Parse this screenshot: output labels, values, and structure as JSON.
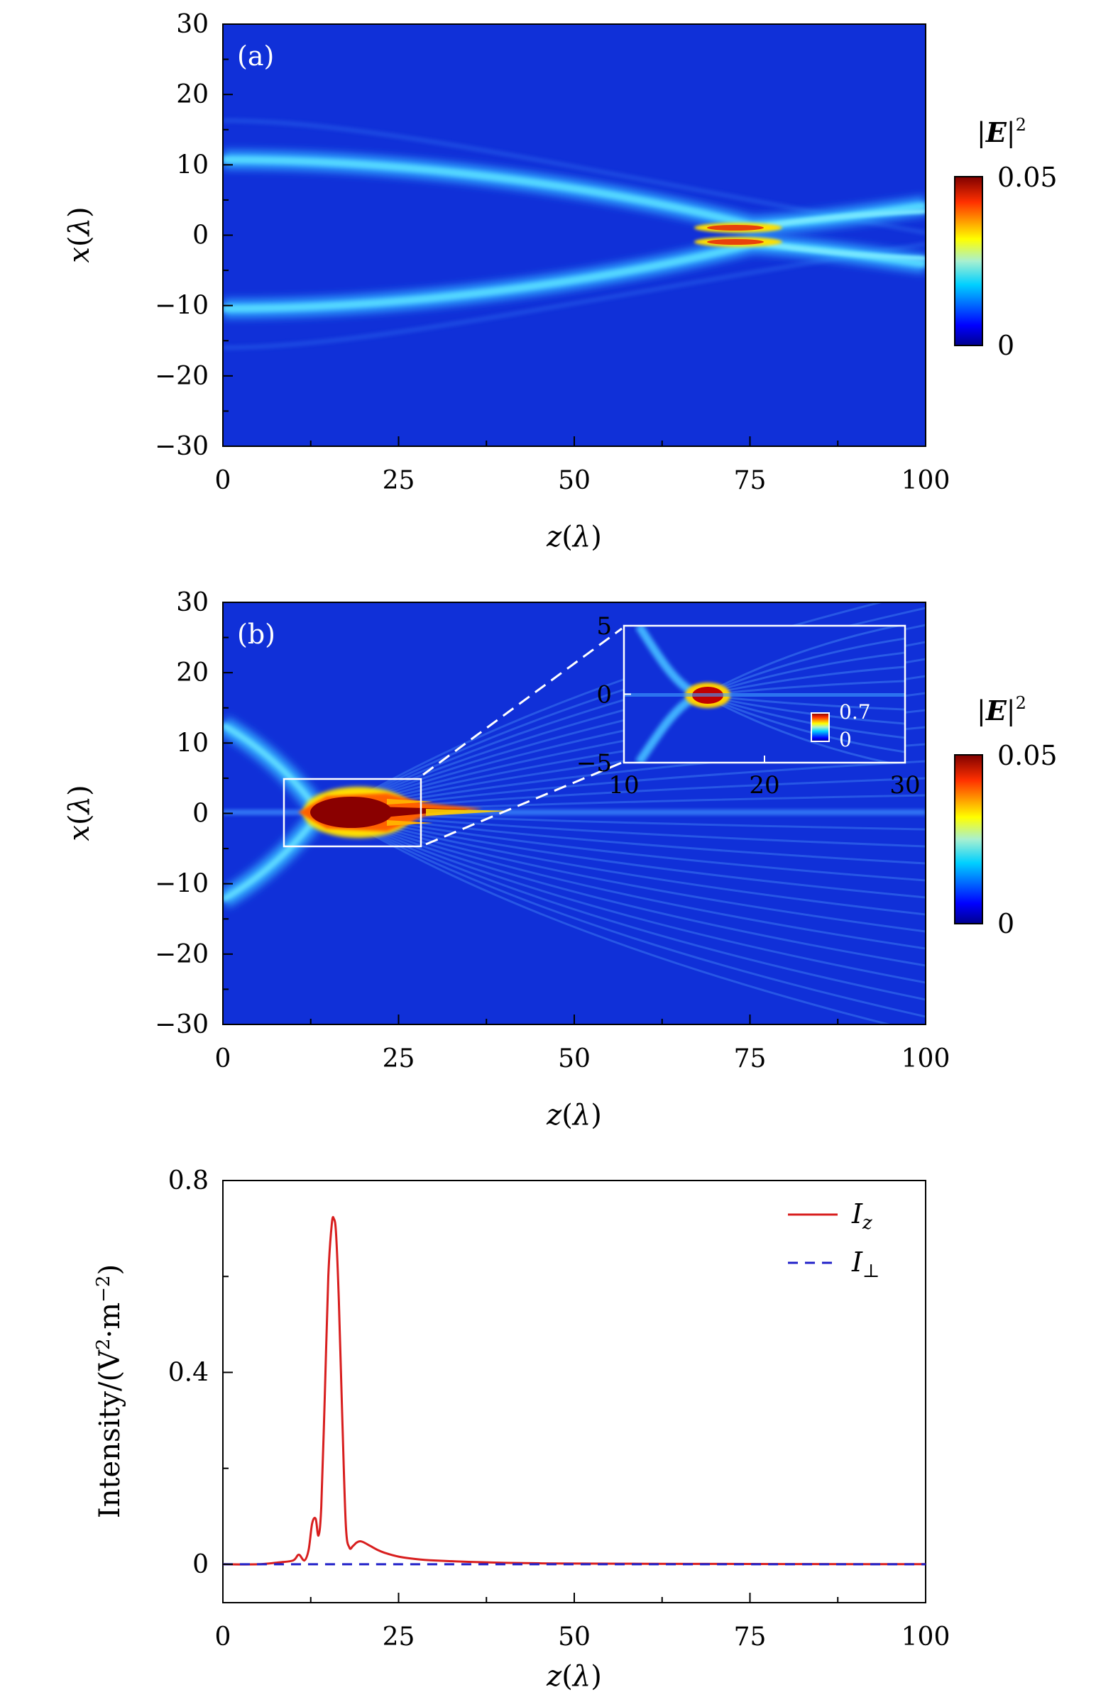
{
  "chart_data": [
    {
      "type": "heatmap",
      "panel_label": "(a)",
      "xlabel": "z(λ)",
      "ylabel": "x(λ)",
      "xlim": [
        0,
        100
      ],
      "ylim": [
        -30,
        30
      ],
      "x_ticks": [
        "0",
        "25",
        "50",
        "75",
        "100"
      ],
      "y_ticks": [
        "30",
        "20",
        "10",
        "0",
        "−10",
        "−20",
        "−30"
      ],
      "colorbar": {
        "label": "|E|²",
        "max_label": "0.05",
        "min_label": "0",
        "range": [
          0,
          0.05
        ]
      },
      "features": [
        {
          "kind": "converging beam",
          "start": [
            0,
            11
          ],
          "focus": [
            73,
            1
          ],
          "after": [
            100,
            3
          ]
        },
        {
          "kind": "converging beam",
          "start": [
            0,
            -11
          ],
          "focus": [
            73,
            -1
          ],
          "after": [
            100,
            -3
          ]
        }
      ],
      "focus_peak": {
        "z": 73,
        "x": 0,
        "value": 0.05
      }
    },
    {
      "type": "heatmap",
      "panel_label": "(b)",
      "xlabel": "z(λ)",
      "ylabel": "x(λ)",
      "xlim": [
        0,
        100
      ],
      "ylim": [
        -30,
        30
      ],
      "x_ticks": [
        "0",
        "25",
        "50",
        "75",
        "100"
      ],
      "y_ticks": [
        "30",
        "20",
        "10",
        "0",
        "−10",
        "−20",
        "−30"
      ],
      "colorbar": {
        "label": "|E|²",
        "max_label": "0.05",
        "min_label": "0",
        "range": [
          0,
          0.05
        ]
      },
      "focus_peak": {
        "z": 16,
        "x": 0,
        "value": 0.7
      },
      "inset": {
        "xlim": [
          10,
          30
        ],
        "ylim": [
          -5,
          5
        ],
        "x_ticks": [
          "10",
          "20",
          "30"
        ],
        "y_ticks": [
          "5",
          "0",
          "−5"
        ],
        "colorbar": {
          "max_label": "0.7",
          "min_label": "0",
          "range": [
            0,
            0.7
          ]
        }
      }
    },
    {
      "type": "line",
      "xlabel": "z(λ)",
      "ylabel": "Intensity/(V²·m⁻²)",
      "xlim": [
        0,
        100
      ],
      "ylim": [
        -0.08,
        0.8
      ],
      "x_ticks": [
        "0",
        "25",
        "50",
        "75",
        "100"
      ],
      "y_ticks": [
        "0.8",
        "0.4",
        "0"
      ],
      "legend_position": "top-right",
      "series": [
        {
          "name": "Iz",
          "color": "#d81e1e",
          "style": "solid",
          "x": [
            0,
            5,
            8,
            10,
            10.8,
            11.6,
            12.2,
            12.7,
            13.2,
            13.6,
            14.0,
            14.5,
            15.0,
            15.5,
            15.8,
            16.1,
            16.5,
            17.0,
            17.5,
            18.0,
            18.5,
            19.0,
            19.5,
            20.0,
            21.0,
            22.0,
            23.0,
            25.0,
            28.0,
            30.0,
            35.0,
            40.0,
            45.0,
            50.0,
            60.0,
            70.0,
            80.0,
            90.0,
            100.0
          ],
          "y": [
            0,
            0,
            0.004,
            0.008,
            0.02,
            0.008,
            0.03,
            0.085,
            0.095,
            0.06,
            0.12,
            0.35,
            0.6,
            0.71,
            0.72,
            0.69,
            0.55,
            0.3,
            0.08,
            0.035,
            0.038,
            0.045,
            0.048,
            0.046,
            0.038,
            0.03,
            0.024,
            0.016,
            0.01,
            0.008,
            0.005,
            0.003,
            0.002,
            0.0015,
            0.001,
            0.0008,
            0.0005,
            0.0003,
            0.0002
          ]
        },
        {
          "name": "I⊥",
          "color": "#2020c8",
          "style": "dashed",
          "x": [
            0,
            100
          ],
          "y": [
            0,
            0
          ]
        }
      ],
      "legend": [
        {
          "name": "Iz"
        },
        {
          "name": "I⊥"
        }
      ]
    }
  ]
}
